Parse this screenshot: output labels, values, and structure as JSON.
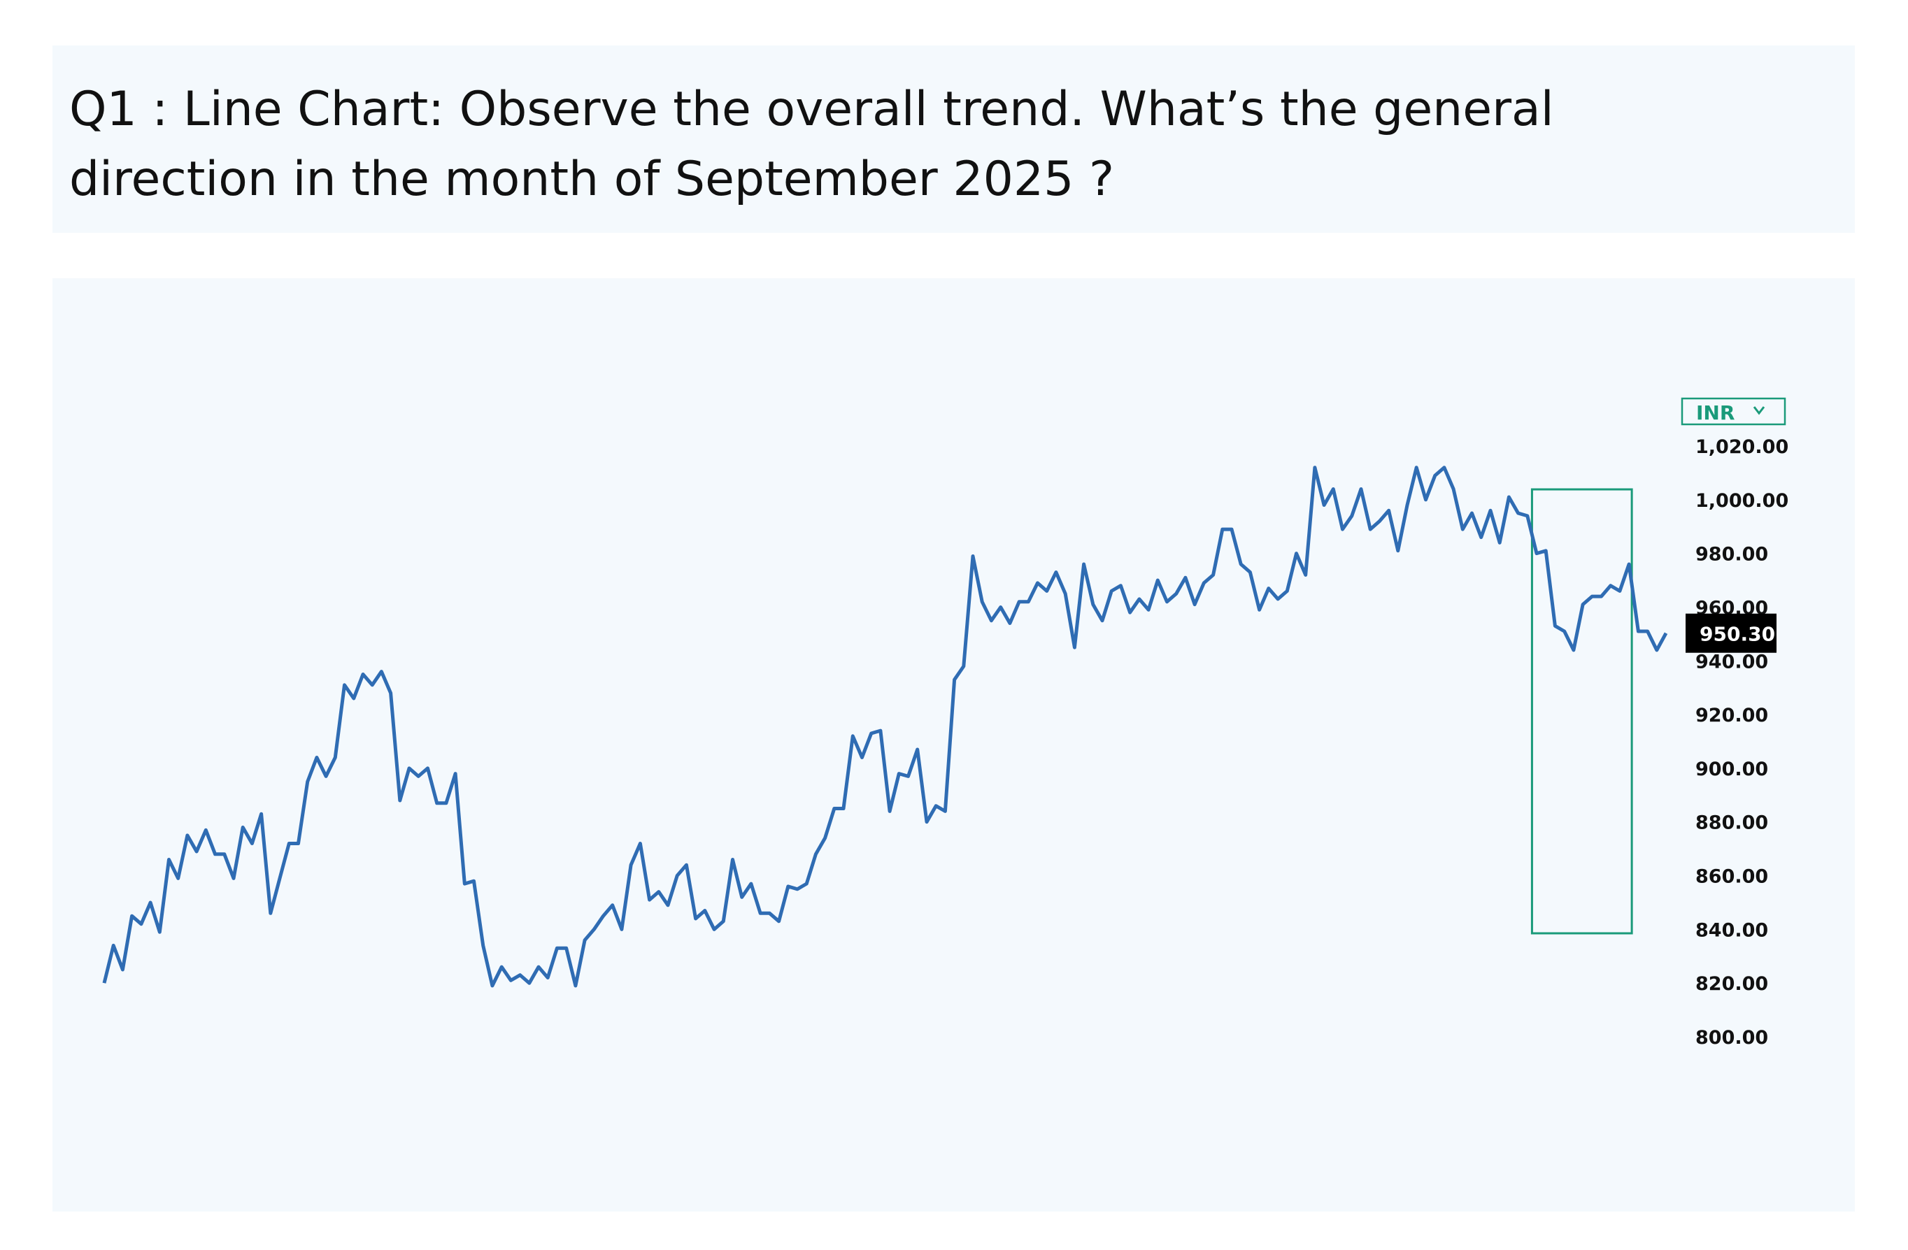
{
  "question": "Q1 : Line Chart: Observe the overall trend. What’s the general direction in the month of September 2025 ?",
  "chart_data": {
    "type": "line",
    "color": "#2f6cb3",
    "currency": "INR",
    "last_price_label": "950.30",
    "values": [
      820,
      834,
      825,
      845,
      842,
      850,
      839,
      866,
      859,
      875,
      869,
      877,
      868,
      868,
      859,
      878,
      872,
      883,
      846,
      859,
      872,
      872,
      895,
      904,
      897,
      904,
      931,
      926,
      935,
      931,
      936,
      928,
      888,
      900,
      897,
      900,
      887,
      887,
      898,
      857,
      858,
      834,
      819,
      826,
      821,
      823,
      820,
      826,
      822,
      833,
      833,
      819,
      836,
      840,
      845,
      849,
      840,
      864,
      872,
      851,
      854,
      849,
      860,
      864,
      844,
      847,
      840,
      843,
      866,
      852,
      857,
      846,
      846,
      843,
      856,
      855,
      857,
      868,
      874,
      885,
      885,
      912,
      904,
      913,
      914,
      884,
      898,
      897,
      907,
      880,
      886,
      884,
      933,
      938,
      979,
      962,
      955,
      960,
      954,
      962,
      962,
      969,
      966,
      973,
      965,
      945,
      976,
      961,
      955,
      966,
      968,
      958,
      963,
      959,
      970,
      962,
      965,
      971,
      961,
      969,
      972,
      989,
      989,
      976,
      973,
      959,
      967,
      963,
      966,
      980,
      972,
      1012,
      998,
      1004,
      989,
      994,
      1004,
      989,
      992,
      996,
      981,
      998,
      1012,
      1000,
      1009,
      1012,
      1004,
      989,
      995,
      986,
      996,
      984,
      1001,
      995,
      994,
      980,
      981,
      953,
      951,
      944,
      961,
      964,
      964,
      968,
      966,
      976,
      951,
      951,
      944,
      950.3
    ],
    "ylim": [
      800,
      1020
    ],
    "yticks": [
      {
        "value": 800,
        "label": "800.00"
      },
      {
        "value": 820,
        "label": "820.00"
      },
      {
        "value": 840,
        "label": "840.00"
      },
      {
        "value": 860,
        "label": "860.00"
      },
      {
        "value": 880,
        "label": "880.00"
      },
      {
        "value": 900,
        "label": "900.00"
      },
      {
        "value": 920,
        "label": "920.00"
      },
      {
        "value": 940,
        "label": "940.00"
      },
      {
        "value": 960,
        "label": "960.00"
      },
      {
        "value": 980,
        "label": "980.00"
      },
      {
        "value": 1000,
        "label": "1,000.00"
      },
      {
        "value": 1020,
        "label": "1,020.00"
      }
    ],
    "grid": false
  }
}
